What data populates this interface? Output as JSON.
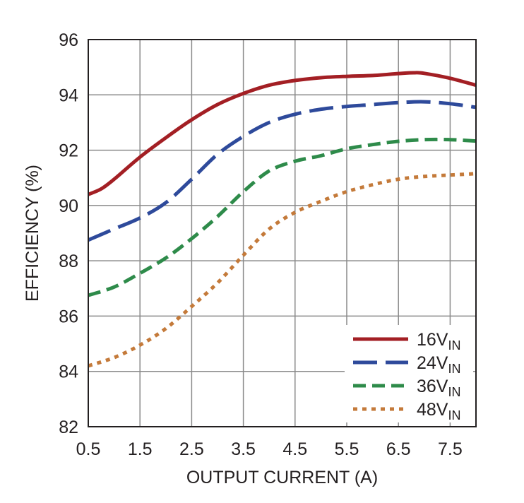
{
  "chart_data": {
    "type": "line",
    "xlabel": "OUTPUT CURRENT (A)",
    "ylabel": "EFFICIENCY (%)",
    "xlim": [
      0.5,
      8.0
    ],
    "ylim": [
      82,
      96
    ],
    "xticks": [
      "0.5",
      "1.5",
      "2.5",
      "3.5",
      "4.5",
      "5.5",
      "6.5",
      "7.5"
    ],
    "yticks": [
      "82",
      "84",
      "86",
      "88",
      "90",
      "92",
      "94",
      "96"
    ],
    "grid": true,
    "legend_position": "bottom-right",
    "series": [
      {
        "name": "16V",
        "name_sub": "IN",
        "color": "#a31f24",
        "dash": "solid",
        "x": [
          0.5,
          0.75,
          1.0,
          1.5,
          2.0,
          2.5,
          3.0,
          3.5,
          4.0,
          4.5,
          5.0,
          5.5,
          6.0,
          6.5,
          6.8,
          7.0,
          7.5,
          8.0
        ],
        "y": [
          90.4,
          90.6,
          90.95,
          91.75,
          92.45,
          93.1,
          93.65,
          94.05,
          94.35,
          94.52,
          94.62,
          94.67,
          94.7,
          94.77,
          94.8,
          94.78,
          94.6,
          94.35
        ]
      },
      {
        "name": "24V",
        "name_sub": "IN",
        "color": "#2e4a9b",
        "dash": "long-dash",
        "x": [
          0.5,
          1.0,
          1.5,
          2.0,
          2.5,
          3.0,
          3.5,
          4.0,
          4.5,
          5.0,
          5.5,
          6.0,
          6.5,
          7.0,
          7.5,
          8.0
        ],
        "y": [
          88.75,
          89.15,
          89.55,
          90.1,
          90.95,
          91.85,
          92.5,
          93.0,
          93.3,
          93.48,
          93.58,
          93.65,
          93.72,
          93.75,
          93.68,
          93.55
        ]
      },
      {
        "name": "36V",
        "name_sub": "IN",
        "color": "#2e8b4a",
        "dash": "dash",
        "x": [
          0.5,
          1.0,
          1.5,
          2.0,
          2.5,
          3.0,
          3.5,
          4.0,
          4.5,
          5.0,
          5.5,
          6.0,
          6.5,
          7.0,
          7.5,
          8.0
        ],
        "y": [
          86.75,
          87.05,
          87.55,
          88.1,
          88.8,
          89.6,
          90.5,
          91.25,
          91.6,
          91.8,
          92.05,
          92.2,
          92.32,
          92.38,
          92.38,
          92.33
        ]
      },
      {
        "name": "48V",
        "name_sub": "IN",
        "color": "#c47a3a",
        "dash": "dot",
        "x": [
          0.5,
          1.0,
          1.5,
          2.0,
          2.5,
          3.0,
          3.5,
          4.0,
          4.5,
          5.0,
          5.5,
          6.0,
          6.5,
          7.0,
          7.5,
          8.0
        ],
        "y": [
          84.2,
          84.5,
          84.95,
          85.55,
          86.35,
          87.2,
          88.2,
          89.15,
          89.75,
          90.15,
          90.5,
          90.75,
          90.95,
          91.05,
          91.1,
          91.15
        ]
      }
    ]
  }
}
